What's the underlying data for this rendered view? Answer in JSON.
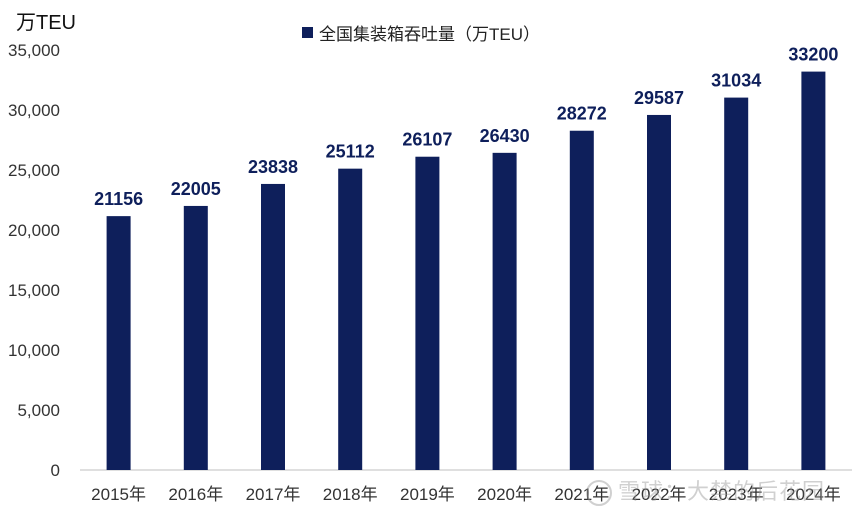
{
  "chart_data": {
    "type": "bar",
    "unit_label": "万TEU",
    "categories": [
      "2015年",
      "2016年",
      "2017年",
      "2018年",
      "2019年",
      "2020年",
      "2021年",
      "2022年",
      "2023年",
      "2024年"
    ],
    "series": [
      {
        "name": "全国集装箱吞吐量（万TEU）",
        "values": [
          21156,
          22005,
          23838,
          25112,
          26107,
          26430,
          28272,
          29587,
          31034,
          33200
        ],
        "color": "#0e1f5b"
      }
    ],
    "data_labels": [
      "21156",
      "22005",
      "23838",
      "25112",
      "26107",
      "26430",
      "28272",
      "29587",
      "31034",
      "33200"
    ],
    "ylim": [
      0,
      35000
    ],
    "yticks": [
      0,
      5000,
      10000,
      15000,
      20000,
      25000,
      30000,
      35000
    ],
    "ytick_labels": [
      "0",
      "5,000",
      "10,000",
      "15,000",
      "20,000",
      "25,000",
      "30,000",
      "35,000"
    ],
    "legend_position": "top-center",
    "grid": false
  },
  "watermark": {
    "text": "雪球：大禁的后花园"
  }
}
